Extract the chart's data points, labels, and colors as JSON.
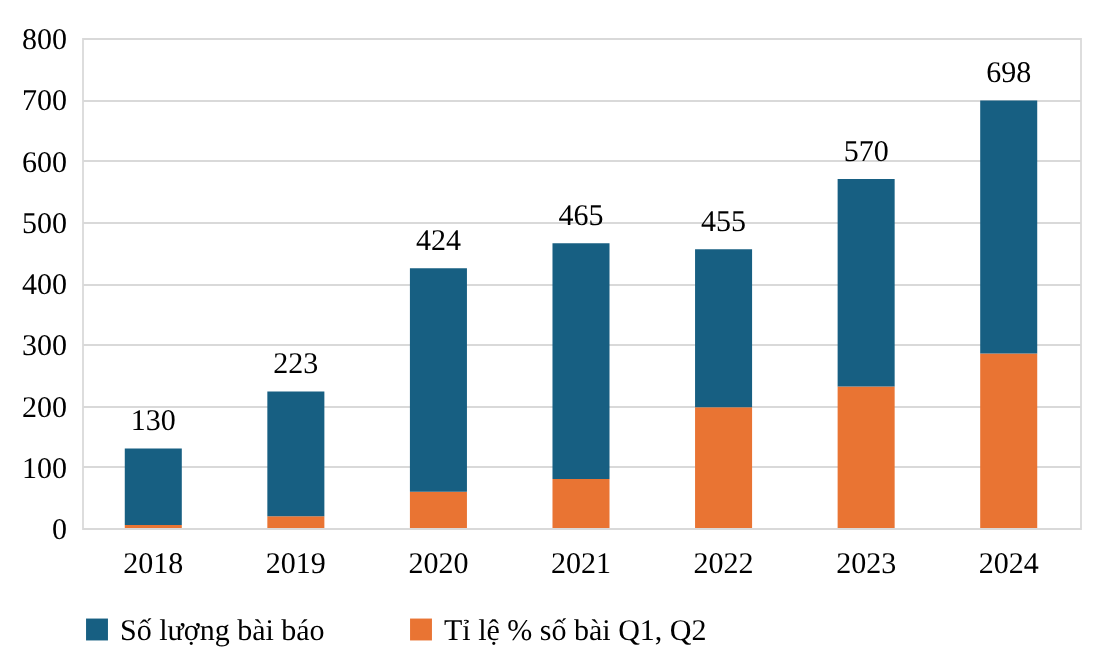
{
  "chart_data": {
    "type": "bar",
    "stacked": true,
    "categories": [
      "2018",
      "2019",
      "2020",
      "2021",
      "2022",
      "2023",
      "2024"
    ],
    "series": [
      {
        "name": "Tỉ lệ % số bài Q1, Q2",
        "color": "#e97433",
        "values": [
          5,
          19,
          59,
          80,
          197,
          231,
          285
        ]
      },
      {
        "name": "Số lượng bài báo",
        "color": "#175f82",
        "values": [
          125,
          204,
          365,
          385,
          258,
          339,
          413
        ]
      }
    ],
    "totals": [
      "130",
      "223",
      "424",
      "465",
      "455",
      "570",
      "698"
    ],
    "ylim": [
      0,
      800
    ],
    "yticks": [
      0,
      100,
      200,
      300,
      400,
      500,
      600,
      700,
      800
    ],
    "grid": "y",
    "legend": "bottom"
  }
}
